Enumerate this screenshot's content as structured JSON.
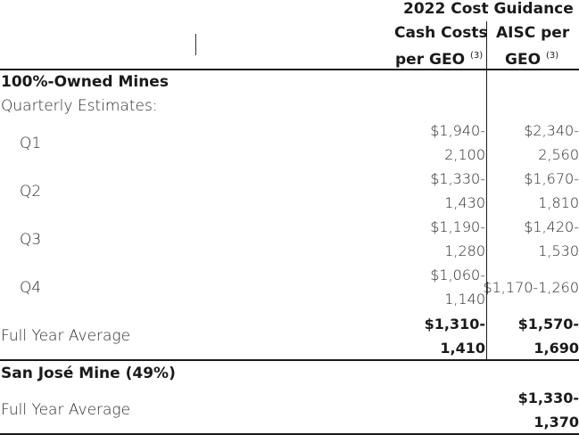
{
  "header": {
    "group_title": "2022 Cost Guidance",
    "col1_line1": "Cash Costs",
    "col1_line2": "per GEO",
    "col1_note": "(3)",
    "col2_line1": "AISC per",
    "col2_line2": "GEO",
    "col2_note": "(3)"
  },
  "section1": {
    "title": "100%-Owned Mines",
    "subtitle": "Quarterly Estimates:",
    "rows": [
      {
        "label": "Q1",
        "cash_a": "$1,940-",
        "cash_b": "2,100",
        "aisc_a": "$2,340-",
        "aisc_b": "2,560"
      },
      {
        "label": "Q2",
        "cash_a": "$1,330-",
        "cash_b": "1,430",
        "aisc_a": "$1,670-",
        "aisc_b": "1,810"
      },
      {
        "label": "Q3",
        "cash_a": "$1,190-",
        "cash_b": "1,280",
        "aisc_a": "$1,420-",
        "aisc_b": "1,530"
      },
      {
        "label": "Q4",
        "cash_a": "$1,060-",
        "cash_b": "1,140",
        "aisc_single": "$1,170-1,260"
      }
    ],
    "full_year": {
      "label": "Full Year Average",
      "cash_a": "$1,310-",
      "cash_b": "1,410",
      "aisc_a": "$1,570-",
      "aisc_b": "1,690"
    }
  },
  "section2": {
    "title": "San José Mine (49%)",
    "full_year": {
      "label": "Full Year Average",
      "aisc_a": "$1,330-",
      "aisc_b": "1,370"
    }
  }
}
